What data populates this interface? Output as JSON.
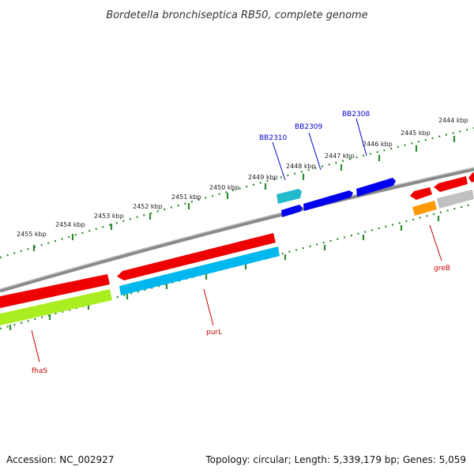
{
  "title": "Bordetella bronchiseptica RB50, complete genome",
  "footer": {
    "accession": "Accession: NC_002927",
    "summary": "Topology: circular; Length: 5,339,179 bp; Genes: 5,059"
  },
  "colors": {
    "backbone": "#8a8a8a",
    "tick": "#2e8b2e",
    "label_blue": "#0000cc",
    "label_red": "#cc0000"
  },
  "scale": {
    "ticks": [
      "2455 kbp",
      "2454 kbp",
      "2453 kbp",
      "2452 kbp",
      "2451 kbp",
      "2450 kbp",
      "2449 kbp",
      "2448 kbp",
      "2447 kbp",
      "2446 kbp",
      "2445 kbp",
      "2444 kbp"
    ]
  },
  "genes": [
    {
      "name": "BB2308",
      "strand": "forward",
      "color": "#0000ee"
    },
    {
      "name": "BB2309",
      "strand": "forward",
      "color": "#0000ee"
    },
    {
      "name": "BB2310",
      "strand": "forward",
      "color": "#0000ee"
    },
    {
      "name": "",
      "strand": "forward",
      "color": "#22bbcc"
    },
    {
      "name": "greB",
      "strand": "reverse",
      "color": "#ee0000"
    },
    {
      "name": "purL",
      "strand": "reverse",
      "color": "#ee0000"
    },
    {
      "name": "fhaS",
      "strand": "reverse",
      "color": "#ee0000"
    }
  ]
}
